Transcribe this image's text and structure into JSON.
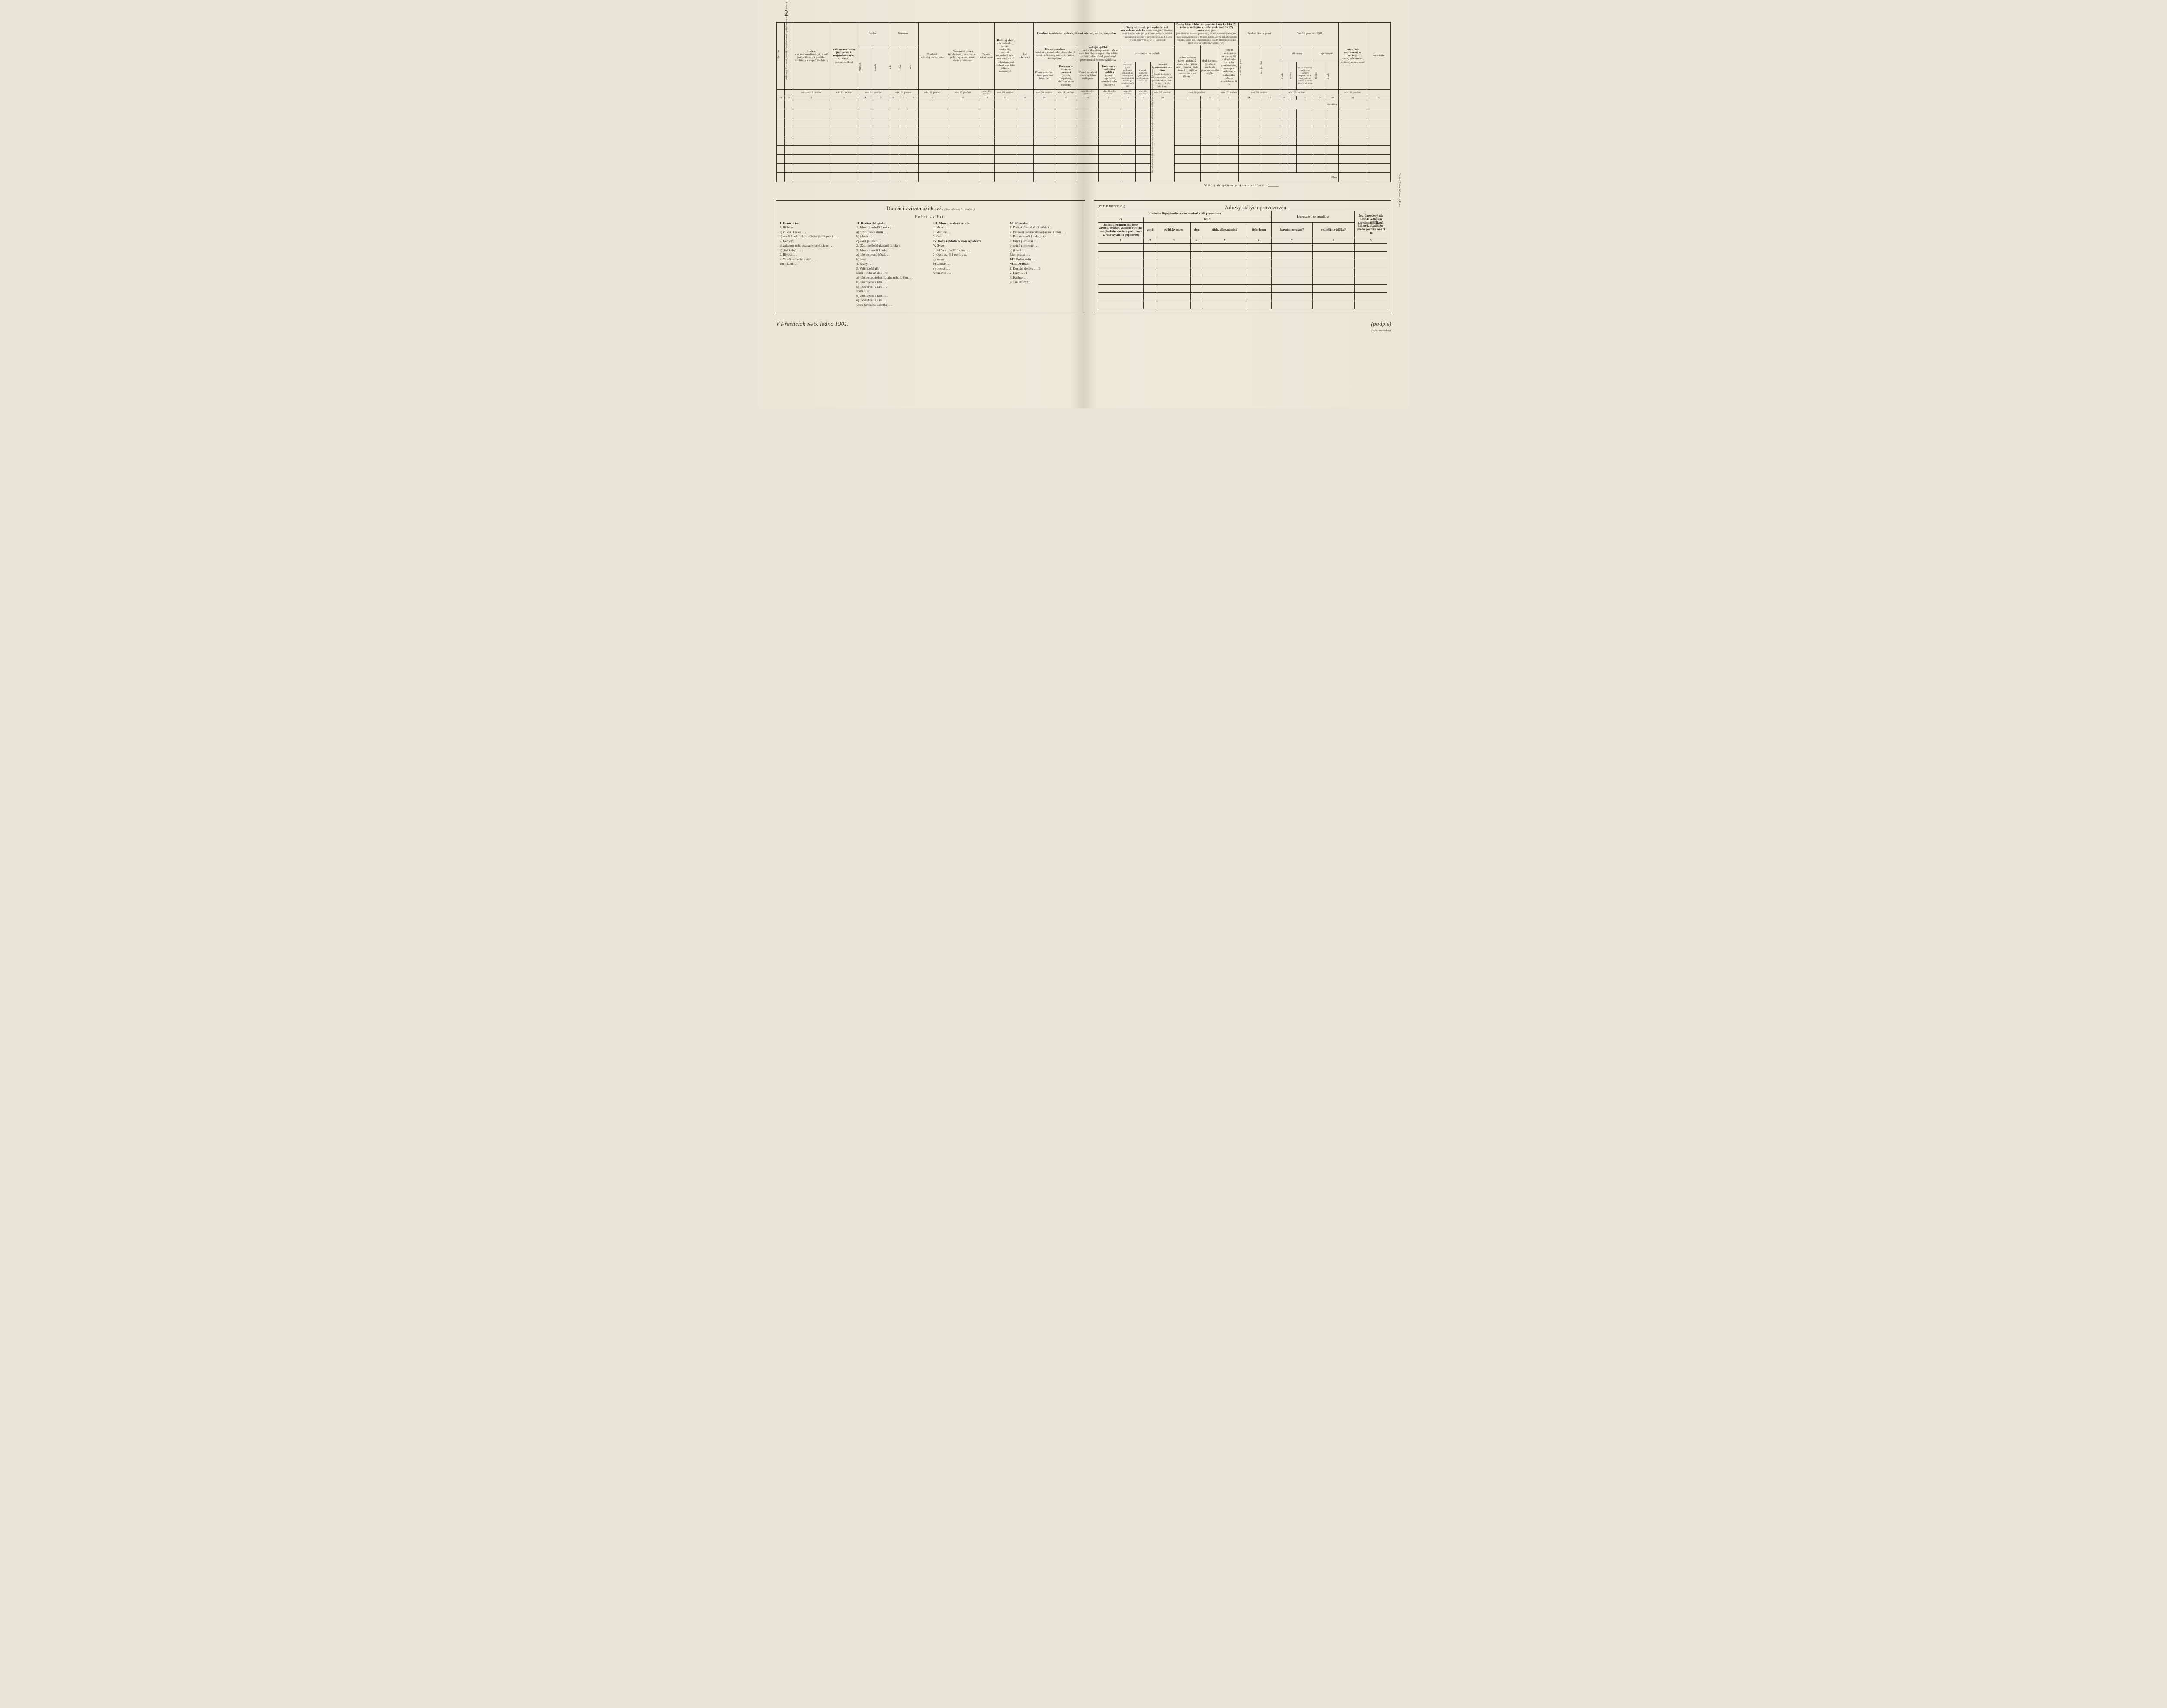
{
  "page_number": "2",
  "date_header": "Dne 31. prosince 1900",
  "side_printer": "Tiskem Aloise Wiesnera v Praze.",
  "columns": {
    "c1": "Číslo bytu",
    "c2": "Pořadové číslo osob, které ku každé v domě bydlící rodině náležejí, odst. 11. poučení",
    "c3_head": "Jméno,",
    "c3_sub": "a to jméno rodinné (příjmení) jméno (křestní), predikát šlechtický a stupeň šlechtický",
    "c4_head": "Příbuzenství nebo jiný poměr k majetníkovi bytu,",
    "c4_sub": "vztažmo k podnájemníkovi",
    "pohlavi": "Pohlaví",
    "c5": "mužské",
    "c6": "ženské",
    "narozeni": "Narození",
    "c7": "rok",
    "c8": "měsíc",
    "c9": "den",
    "c10_head": "Rodiště,",
    "c10_sub": "politický okres, země",
    "c11_head": "Domovské právo",
    "c11_sub": "(příslušnost), místní obec, politický okres, země, státní příslušnost",
    "c12": "Vyznání náboženské",
    "c13_head": "Rodinný stav,",
    "c13_sub": "zda svobodný, ženatý, ovdovělý, soudně rozvedený nebo zda manželství rozloučeno jest rozhodnuto, toto toliko u nekatolíků",
    "c14": "Řeč obcovací",
    "povolani_head": "Povolání, zaměstnání, výdělek, živnost, obchod, výživa, zaopatření",
    "c15_head": "Hlavní povolání,",
    "c15_sub": "na němž výlučně nebo přece hlavně spočívá životní postavení, výživa nebo příjmy",
    "c15a": "Přesné označení oboru povolání hlavního",
    "c15b_head": "Postavení v hlavním povolání",
    "c15b_sub": "(poměr majetkový, služební nebo pracovní)",
    "c16_head": "Vedlejší výdělek,",
    "c16_sub": "t. j. vedle hlavního povolání neb od osob bez hlavního povolání toliko mimochodem avšak pravidelně provozovaná činnost výdělková",
    "c16a": "Přesné označení oboru výdělku vedlejšího",
    "c16b_head": "Postavení ve vedlejším výdělku",
    "c16b_sub": "(poměr majetkový, služební nebo pracovní)",
    "osoby1_head": "Osoby v živnosti, průmyslovém neb obchodním podniku",
    "osoby1_sub": "zaměstnané, jakož i ředitelé, administrační nebo jiní správcové takových podniků — poznamenejte, zdali v hlavním povolání Hp nebo ve vedlejším výdělku Vv — udejte zde",
    "prov_head": "provozuje-li se podnik",
    "c18a": "přechodně (jako podomní zákazník za mzdu (jako obchodník aj domácí po souše) ano či ne",
    "c18b": "v domě bydlícím (jako práce po domácku) ano či ne",
    "c19_head": "ve stálé provozovně ano či ne",
    "c19_sub": "Ano-li, buď udána adresa podniku (země, politický okres, obec, třída ulice, náměstí, číslo domu)",
    "osoby2_head": "Osoby, které v hlavním povolání (rubrika 14 a 15) nebo ve vedlejším výdělku (rubrika 16 a 17) zaměstnány jsou",
    "osoby2_sub": "jako úředníci, dozorci, pomocníci, dělníci, nádenníci nebo jako jinaké osoby pomocné v živnosti, průmyslovém neb obchodním podniku, udejte zde, poznamenajíce, zdali v hlavním povolání (Hp) nebo ve vedlejším výdělku (Vv)",
    "c20a": "jméno a adresu (zemi, politický okres, obec, třídu, ulici, náměstí, číslo domu) nynějšího zaměstnavatele (firmy)",
    "c20b": "druh živnosti, vztažmo obchodu provozovaného odvětví",
    "c21_head": "jsou-li zaměstnány na pracovišti, v dílně nebo byli tolik zaměstnávání, pouze jeho příkazem u zákazníků nebo na cestách ano či ne",
    "znalost": "Znalost čtení a psaní",
    "c22": "umí čísti a psáti",
    "c23": "umí jen čísti",
    "pritomny": "přítomný",
    "c24": "trvale",
    "c25": "na čas",
    "c26_head": "trvale přítomný udejte zde: počátek nepřetržitého dosavadního pobytu v obci v letech od roku",
    "nepritomny": "nepřítomný",
    "c27": "na čas",
    "c28": "trvale",
    "c29_head": "Místo, kde nepřítomný se zdržuje,",
    "c29_sub": "osada, místní obec, politický okres, země",
    "c30": "Poznámka",
    "ref3": "odstavec 12. poučení",
    "ref4": "odst. 13. poučení",
    "ref56": "odst. 14. poučení",
    "ref78": "odst. 15. poučení",
    "ref10": "odst. 16. poučení",
    "ref11": "odst. 17. poučení",
    "ref12": "odst. 18. poučení",
    "ref13": "odst. 19. poučení",
    "ref15": "odst. 20. poučení",
    "ref16": "odst. 21. poučení",
    "ref17": "odst. 22. a 20. poučení",
    "ref18": "odst. 22. a 21. poučení",
    "ref19": "odst. 23. poučení",
    "ref20": "odst. 24. poučení",
    "ref21": "odst. 25. poučení",
    "ref22": "odst. 26. poučení",
    "ref23": "odst. 27. poučení",
    "ref24": "odst. 28. poučení",
    "ref26": "odst. 29. poučení",
    "ref30": "odst. 30. poučení",
    "rot_note": "Zde buď zapsáno toliko ano nebo ne, adresy uvedeny buďte v následujícím oddílu, nadepsaném „adresy stálých provozoven\"",
    "prenaaska": "Přenáška:",
    "uhrn": "Úhrn:"
  },
  "summary_line": "Veškerý úhrn přítomných (z rubriky 25 a 26): ______",
  "animals": {
    "title": "Domácí zvířata užitková.",
    "title_note": "(Srov. odstavec 31. poučení.)",
    "subtitle": "Počet zvířat.",
    "col1_head": "I. Koně, a to:",
    "col1": [
      "1. Hříbata:",
      "a) mladší 1 roku . . .",
      "b) starší 1 roku až do užívání jich k práci . . .",
      "2. Kobyly:",
      "a) zařazené nebo zaznamenané klisny . . .",
      "b) jiné kobyly . . .",
      "3. Hřebci . . .",
      "4. Valaši nehledíc k stáří . . .",
      "Úhrn koní . . ."
    ],
    "col2_head": "II. Hovězí dobytek:",
    "col2": [
      "1. Jalovina mladší 1 roku . . .",
      "a) býčci (nekleštění) . . .",
      "b) jalovice . . .",
      "c) volci (kleštění) . . .",
      "2. Býci (nekleštění, starší 1 roku)",
      "3. Jalovice starší 1 roku:",
      "a) ještě neposud březí . . .",
      "b) březí . . .",
      "4. Krávy . . .",
      "5. Voli (kleštění):",
      "starší 1 roku až do 3 let:",
      "a) ještě neupotřebení k tahu nebo k žíru . . .",
      "b) upotřebení k tahu . . .",
      "c) upotřebení k žíru . . .",
      "starší 3 let:",
      "d) upotřebení k tahu . . .",
      "e) upotřebení k žíru . . .",
      "Úhrn hovězího dobytka . . ."
    ],
    "col3_head": "III. Mezci, mulové a osli:",
    "col3": [
      "1. Mezci . . .",
      "2. Mulové . . .",
      "3. Osli . . .",
      "IV. Kozy nehledíc k stáří a pohlaví",
      "V. Ovce:",
      "1. Jehňata mladší 1 roku . . .",
      "2. Ovce starší 1 roku, a to:",
      "a) berani . . .",
      "b) samice . . .",
      "c) skopci . . .",
      "Úhrn ovcí . . ."
    ],
    "col4_head": "VI. Prasata:",
    "col4": [
      "1. Podsvinčata až do 3 měsíců . .",
      "2. Běhouni (nedorostlová) až od 1 roku . . .",
      "3. Prasata starší 1 roku, a to:",
      "a) kanci plemenní . . .",
      "b) svině plemenné . . .",
      "c) jinaká . . .",
      "Úhrn prasat . . .",
      "VII. Počet oulů . . .",
      "VIII. Drůbež:",
      "1. Domácí slepice . . .  3",
      "2. Husy . . .  1",
      "3. Kachny . . .",
      "4. Jiná drůbež . . ."
    ]
  },
  "addresses": {
    "title": "Adresy stálých provozoven.",
    "note": "(Patří k rubrice 20.)",
    "header_row": "V rubrice 20 popisného archu uvedená stálá provozovna",
    "h_ci": "čí",
    "h_lezi": "leží v",
    "h_jmeno": "Jméno a příjmení majitele závodu, ředitele, administračního neb jinakého správce podniku (z 2. rubriky archu popisného)",
    "h_zeme": "země",
    "h_okres": "politický okres",
    "h_obec": "obec",
    "h_ulice": "třída, ulice, náměstí",
    "h_dum": "číslo domu",
    "h_prov": "Provozuje-li se podnik ve",
    "h_hlav": "hlavním povolání?",
    "h_vedl": "vedlejším výdělku?",
    "h_jest": "Jest-li uvedený zde podnik vedlejším závodem (filiálkou), faktorií, skladištěm jiného podniku ano či ne",
    "n1": "1",
    "n2": "2",
    "n3": "3",
    "n4": "4",
    "n5": "5",
    "n6": "6",
    "n7": "7",
    "n8": "8",
    "n9": "9"
  },
  "signature": {
    "place": "V Přešticích",
    "dne": "dne",
    "date": "5. ledna 1901.",
    "sig": "(podpis)",
    "sig_note": "(Místo pro podpis)"
  }
}
